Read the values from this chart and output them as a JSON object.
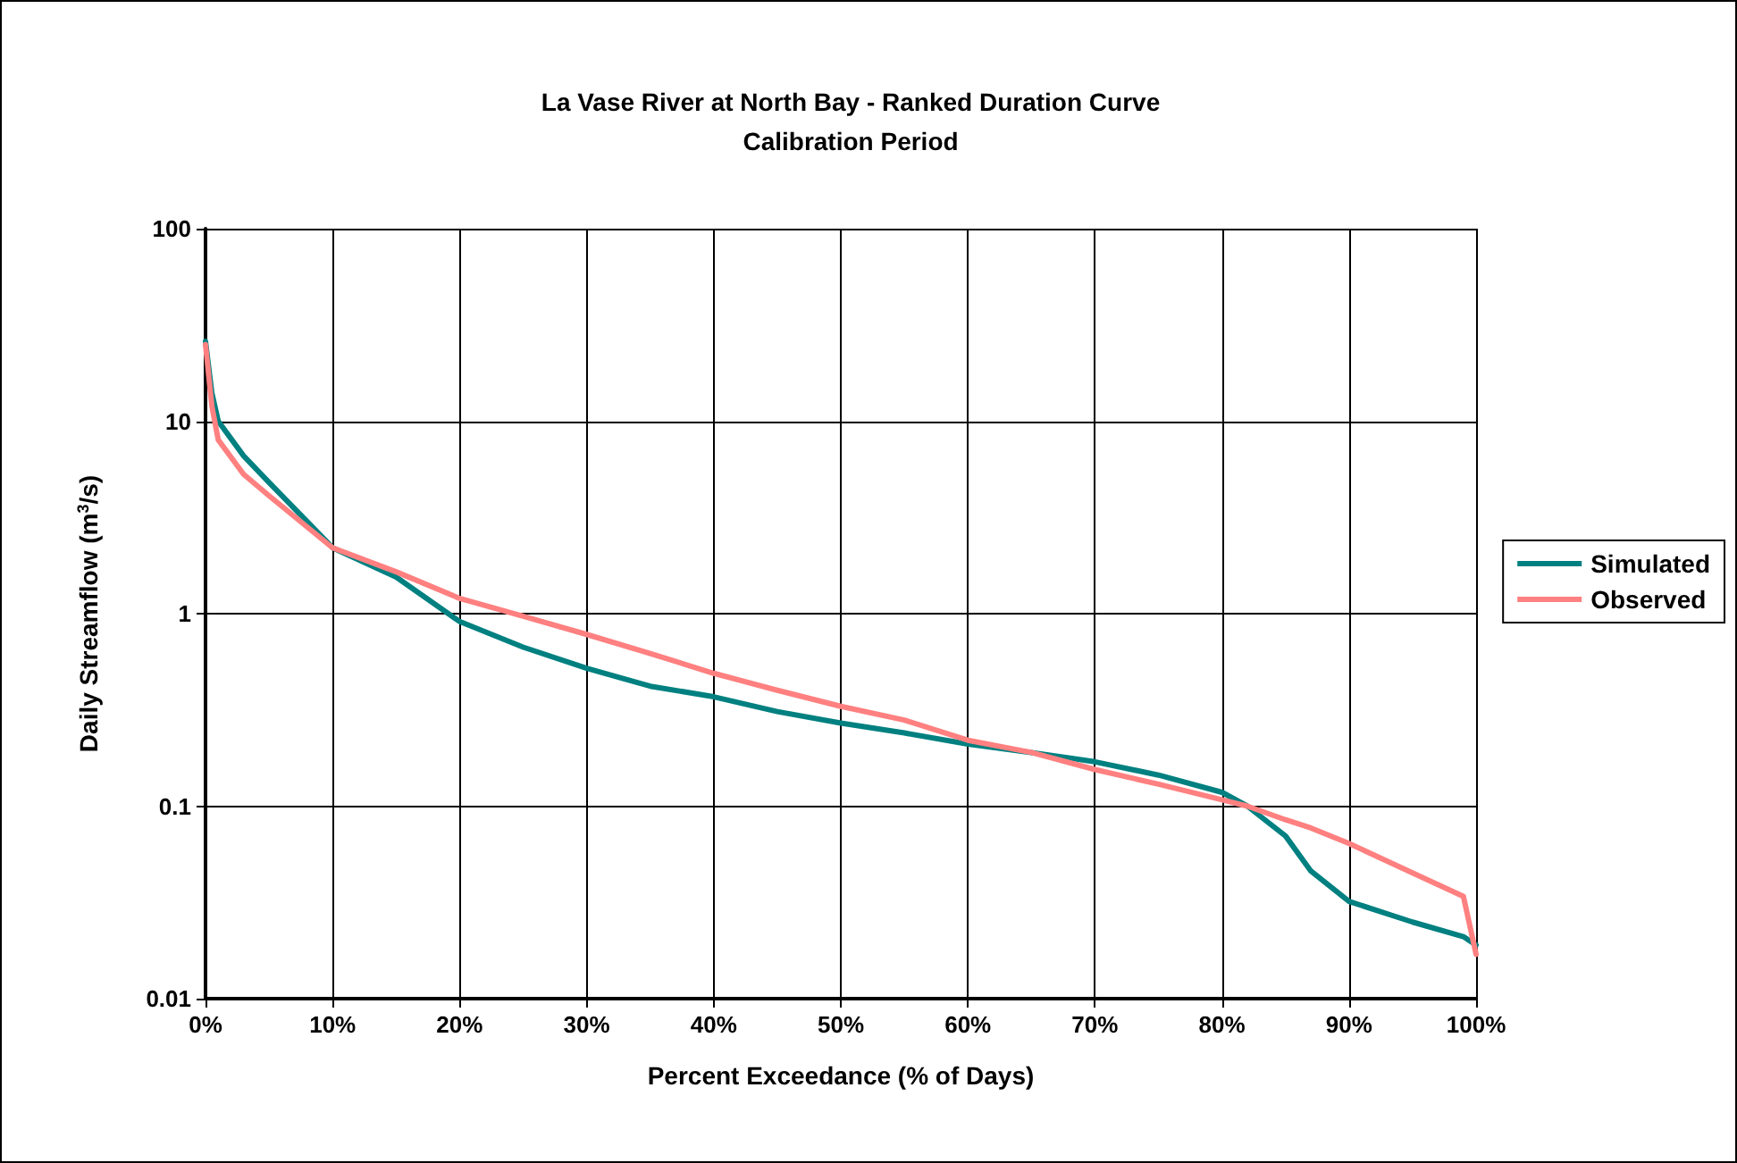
{
  "chart_data": {
    "type": "line",
    "title": "La Vase River at North Bay - Ranked Duration Curve",
    "subtitle": "Calibration Period",
    "xlabel": "Percent Exceedance (% of Days)",
    "ylabel": "Daily Streamflow (m$^{3}$/s)",
    "log": "y",
    "grid": true,
    "legend": "right",
    "marker": "none",
    "line_style": "solid",
    "xlim": [
      0,
      100
    ],
    "xticks": [
      {
        "value": 0,
        "label": "0%"
      },
      {
        "value": 10,
        "label": "10%"
      },
      {
        "value": 20,
        "label": "20%"
      },
      {
        "value": 30,
        "label": "30%"
      },
      {
        "value": 40,
        "label": "40%"
      },
      {
        "value": 50,
        "label": "50%"
      },
      {
        "value": 60,
        "label": "60%"
      },
      {
        "value": 70,
        "label": "70%"
      },
      {
        "value": 80,
        "label": "80%"
      },
      {
        "value": 90,
        "label": "90%"
      },
      {
        "value": 100,
        "label": "100%"
      }
    ],
    "ylim": [
      0.01,
      100
    ],
    "yticks": [
      0.01,
      0.1,
      1,
      10,
      100
    ],
    "x": [
      0,
      0.5,
      1,
      3,
      5,
      10,
      15,
      20,
      25,
      30,
      35,
      40,
      45,
      50,
      55,
      60,
      65,
      70,
      75,
      80,
      82,
      85,
      87,
      90,
      95,
      99,
      100
    ],
    "series": [
      {
        "name": "Simulated",
        "color": "#008080",
        "values": [
          26,
          14,
          10,
          6.6,
          4.8,
          2.2,
          1.55,
          0.91,
          0.67,
          0.52,
          0.42,
          0.37,
          0.31,
          0.27,
          0.24,
          0.21,
          0.19,
          0.17,
          0.145,
          0.118,
          0.1,
          0.07,
          0.046,
          0.032,
          0.025,
          0.021,
          0.019
        ]
      },
      {
        "name": "Observed",
        "color": "#ff8080",
        "values": [
          25,
          12,
          8,
          5.3,
          4.1,
          2.2,
          1.65,
          1.2,
          0.97,
          0.78,
          0.62,
          0.49,
          0.4,
          0.33,
          0.28,
          0.22,
          0.19,
          0.155,
          0.13,
          0.108,
          0.1,
          0.085,
          0.077,
          0.064,
          0.045,
          0.034,
          0.017
        ]
      }
    ]
  }
}
